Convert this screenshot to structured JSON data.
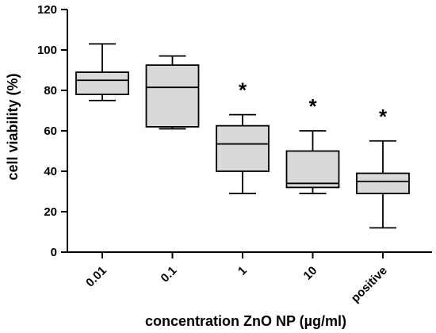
{
  "chart_data": {
    "type": "boxplot",
    "xlabel": "concentration ZnO NP (µg/ml)",
    "ylabel": "cell viability (%)",
    "ylim": [
      0,
      120
    ],
    "yticks": [
      0,
      20,
      40,
      60,
      80,
      100,
      120
    ],
    "box_fill": "#d9d9d9",
    "stroke": "#000000",
    "categories": [
      "0.01",
      "0.1",
      "1",
      "10",
      "positive"
    ],
    "boxes": [
      {
        "category": "0.01",
        "min": 75,
        "q1": 78,
        "median": 85,
        "q3": 89,
        "max": 103,
        "marker": ""
      },
      {
        "category": "0.1",
        "min": 61,
        "q1": 62,
        "median": 81.5,
        "q3": 92.5,
        "max": 97,
        "marker": ""
      },
      {
        "category": "1",
        "min": 29,
        "q1": 40,
        "median": 53.5,
        "q3": 62.5,
        "max": 68,
        "marker": "*"
      },
      {
        "category": "10",
        "min": 29,
        "q1": 32,
        "median": 34,
        "q3": 50,
        "max": 60,
        "marker": "*"
      },
      {
        "category": "positive",
        "min": 12,
        "q1": 29,
        "median": 35,
        "q3": 39,
        "max": 55,
        "marker": "*"
      }
    ]
  }
}
